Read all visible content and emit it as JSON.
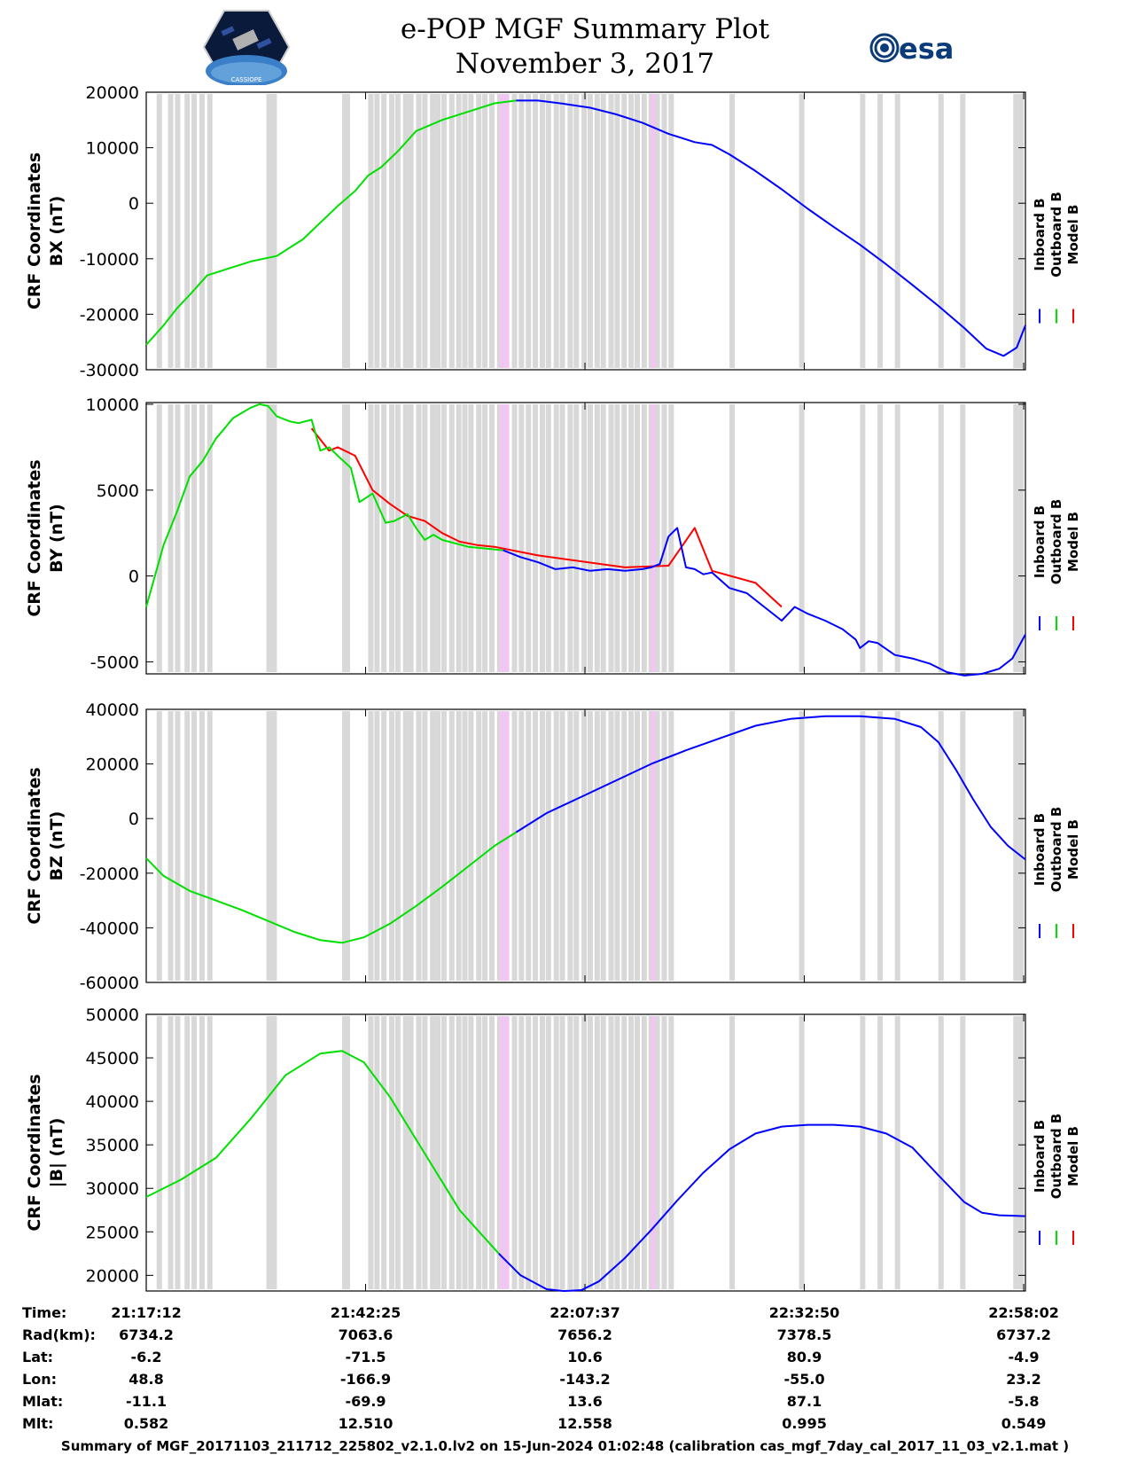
{
  "title": {
    "line1": "e-POP MGF Summary Plot",
    "line2": "November 3, 2017"
  },
  "logos": {
    "left_name": "cassiope-mission-logo",
    "left_text": "CASSIOPE",
    "right_text": "esa"
  },
  "colors": {
    "inboard": "#0000ff",
    "outboard": "#00e000",
    "model": "#ff0000",
    "gap_gray": "#d8d8d8",
    "gap_pink": "#f4c4f4"
  },
  "legend": [
    "Inboard B",
    "Outboard B",
    "Model B"
  ],
  "time_axis": {
    "start_min": 0,
    "end_min": 101,
    "tick_min": [
      0,
      25.2,
      50.4,
      75.6,
      100.8
    ]
  },
  "gaps": {
    "gray_min": [
      1.2,
      2.5,
      3.3,
      4.4,
      5.2,
      6.1,
      7.0,
      13.8,
      14.4,
      22.5,
      22.8,
      25.5,
      26.2,
      27.0,
      27.9,
      28.6,
      29.5,
      30.1,
      31.0,
      31.7,
      32.6,
      33.2,
      33.9,
      34.8,
      35.6,
      36.3,
      37.0,
      37.9,
      38.6,
      39.4,
      40.3,
      41.0,
      42.0,
      42.8,
      43.6,
      44.4,
      45.2,
      45.9,
      46.8,
      47.5,
      48.4,
      49.1,
      50.0,
      50.7,
      51.5,
      52.2,
      53.1,
      53.8,
      54.6,
      55.4,
      56.1,
      56.9,
      57.7,
      58.4,
      59.2,
      60.0,
      67.0,
      75.0,
      82.0,
      84.0,
      86.0,
      91.0,
      93.5,
      99.6,
      100.2
    ],
    "pink_min": [
      40.6,
      41.2,
      58.0
    ]
  },
  "chart_data": [
    {
      "type": "line",
      "title": "",
      "ylabel": "CRF Coordinates BX (nT)",
      "ylabel_lines": [
        "CRF Coordinates",
        "BX (nT)"
      ],
      "ylim": [
        -30000,
        20000
      ],
      "yticks": [
        20000,
        10000,
        0,
        -10000,
        -20000,
        -30000
      ],
      "series": [
        {
          "name": "Outboard B",
          "key": "outboard",
          "x": [
            0,
            2,
            3.5,
            5,
            7,
            9,
            12,
            15,
            18,
            22,
            24,
            25.5,
            27,
            29,
            31,
            34,
            37,
            40,
            42.5
          ],
          "y": [
            -25500,
            -22000,
            -19000,
            -16500,
            -13000,
            -12000,
            -10500,
            -9500,
            -6500,
            -500,
            2200,
            5000,
            6500,
            9500,
            13000,
            15000,
            16500,
            18000,
            18500
          ]
        },
        {
          "name": "Inboard B",
          "key": "inboard",
          "x": [
            42.5,
            45,
            48,
            51,
            54,
            57,
            60,
            63,
            65,
            67,
            70,
            73,
            76,
            79,
            82,
            85,
            88,
            91,
            94,
            96.5,
            98.5,
            100,
            101
          ],
          "y": [
            18500,
            18500,
            17900,
            17200,
            16000,
            14500,
            12500,
            11000,
            10500,
            8800,
            5800,
            2500,
            -1000,
            -4300,
            -7500,
            -11000,
            -14700,
            -18500,
            -22500,
            -26200,
            -27500,
            -26000,
            -22000
          ]
        }
      ]
    },
    {
      "type": "line",
      "title": "",
      "ylabel": "CRF Coordinates BY (nT)",
      "ylabel_lines": [
        "CRF Coordinates",
        "BY (nT)"
      ],
      "ylim": [
        -5700,
        10100
      ],
      "yticks": [
        10000,
        5000,
        0,
        -5000
      ],
      "series": [
        {
          "name": "Model B",
          "key": "model",
          "x": [
            19,
            21,
            22,
            24,
            26,
            28,
            30,
            32,
            34,
            36,
            38,
            40,
            45,
            55,
            60,
            63,
            65,
            70,
            73
          ],
          "y": [
            8600,
            7300,
            7500,
            7000,
            5000,
            4200,
            3500,
            3200,
            2500,
            2000,
            1800,
            1700,
            1200,
            500,
            600,
            2800,
            300,
            -400,
            -1800
          ]
        },
        {
          "name": "Outboard B",
          "key": "outboard",
          "x": [
            0,
            1,
            2,
            3.5,
            5,
            6.5,
            8,
            10,
            12,
            13,
            14,
            15,
            16.5,
            17.5,
            19,
            20,
            21,
            22,
            23.5,
            24.5,
            26,
            27.5,
            28.5,
            30,
            31,
            32,
            33,
            34,
            35.5,
            37,
            39,
            41
          ],
          "y": [
            -1800,
            0,
            1800,
            3700,
            5800,
            6700,
            8000,
            9200,
            9800,
            10000,
            9900,
            9300,
            9000,
            8900,
            9100,
            7300,
            7500,
            7000,
            6300,
            4300,
            4800,
            3100,
            3200,
            3600,
            2800,
            2100,
            2400,
            2100,
            1900,
            1700,
            1600,
            1500
          ]
        },
        {
          "name": "Inboard B",
          "key": "inboard",
          "x": [
            41,
            43,
            45,
            47,
            49,
            51,
            53,
            55,
            57,
            58,
            59,
            60,
            61,
            62,
            63,
            64,
            65,
            67,
            69,
            71,
            73,
            74.5,
            76,
            78,
            80,
            81.5,
            82,
            83,
            84,
            86,
            88,
            90,
            92,
            94,
            96,
            98,
            99.5,
            101
          ],
          "y": [
            1500,
            1100,
            800,
            400,
            500,
            300,
            400,
            300,
            400,
            500,
            700,
            2300,
            2800,
            500,
            400,
            100,
            200,
            -700,
            -1000,
            -1800,
            -2600,
            -1800,
            -2200,
            -2600,
            -3100,
            -3700,
            -4200,
            -3800,
            -3900,
            -4600,
            -4800,
            -5100,
            -5600,
            -5800,
            -5700,
            -5400,
            -4800,
            -3400
          ]
        }
      ]
    },
    {
      "type": "line",
      "title": "",
      "ylabel": "CRF Coordinates BZ (nT)",
      "ylabel_lines": [
        "CRF Coordinates",
        "BZ (nT)"
      ],
      "ylim": [
        -60000,
        40000
      ],
      "yticks": [
        40000,
        20000,
        0,
        -20000,
        -40000,
        -60000
      ],
      "series": [
        {
          "name": "Outboard B",
          "key": "outboard",
          "x": [
            0,
            2,
            5,
            8,
            11,
            14,
            17,
            20,
            22.5,
            25,
            28,
            31,
            34,
            37,
            40,
            42.5
          ],
          "y": [
            -14500,
            -21000,
            -26500,
            -30000,
            -33500,
            -37500,
            -41500,
            -44500,
            -45500,
            -43500,
            -38500,
            -32000,
            -25000,
            -17500,
            -10000,
            -5000
          ]
        },
        {
          "name": "Inboard B",
          "key": "inboard",
          "x": [
            42.5,
            46,
            50,
            54,
            58,
            62,
            66,
            70,
            74,
            78,
            82,
            86,
            89,
            91,
            93,
            95,
            97,
            99,
            101
          ],
          "y": [
            -5000,
            2000,
            8000,
            14000,
            20000,
            25000,
            29500,
            34000,
            36500,
            37500,
            37500,
            36500,
            33500,
            28000,
            18000,
            7000,
            -3000,
            -10000,
            -15000
          ]
        }
      ]
    },
    {
      "type": "line",
      "title": "",
      "ylabel": "CRF Coordinates |B| (nT)",
      "ylabel_lines": [
        "CRF Coordinates",
        "|B| (nT)"
      ],
      "ylim": [
        18200,
        50000
      ],
      "yticks": [
        50000,
        45000,
        40000,
        35000,
        30000,
        25000,
        20000
      ],
      "series": [
        {
          "name": "Outboard B",
          "key": "outboard",
          "x": [
            0,
            4,
            8,
            12,
            16,
            20,
            22.5,
            25,
            28,
            32,
            36,
            40.5
          ],
          "y": [
            29000,
            31000,
            33500,
            38000,
            43000,
            45500,
            45800,
            44500,
            40500,
            34000,
            27500,
            22500
          ]
        },
        {
          "name": "Inboard B",
          "key": "inboard",
          "x": [
            40.5,
            43,
            46,
            48,
            50,
            52,
            55,
            58,
            61,
            64,
            67,
            70,
            73,
            76,
            79,
            82,
            85,
            88,
            91,
            94,
            96,
            98,
            101
          ],
          "y": [
            22500,
            20000,
            18400,
            18200,
            18300,
            19300,
            22000,
            25200,
            28600,
            31800,
            34500,
            36300,
            37100,
            37300,
            37300,
            37100,
            36300,
            34700,
            31500,
            28400,
            27200,
            26900,
            26800
          ]
        }
      ]
    }
  ],
  "ephemeris": {
    "labels": [
      "Time:",
      "Rad(km):",
      "Lat:",
      "Lon:",
      "Mlat:",
      "Mlt:"
    ],
    "columns": [
      [
        "21:17:12",
        "6734.2",
        "-6.2",
        "48.8",
        "-11.1",
        "0.582"
      ],
      [
        "21:42:25",
        "7063.6",
        "-71.5",
        "-166.9",
        "-69.9",
        "12.510"
      ],
      [
        "22:07:37",
        "7656.2",
        "10.6",
        "-143.2",
        "13.6",
        "12.558"
      ],
      [
        "22:32:50",
        "7378.5",
        "80.9",
        "-55.0",
        "87.1",
        "0.995"
      ],
      [
        "22:58:02",
        "6737.2",
        "-4.9",
        "23.2",
        "-5.8",
        "0.549"
      ]
    ]
  },
  "footer": "Summary of MGF_20171103_211712_225802_v2.1.0.lv2 on 15-Jun-2024 01:02:48 (calibration cas_mgf_7day_cal_2017_11_03_v2.1.mat )"
}
